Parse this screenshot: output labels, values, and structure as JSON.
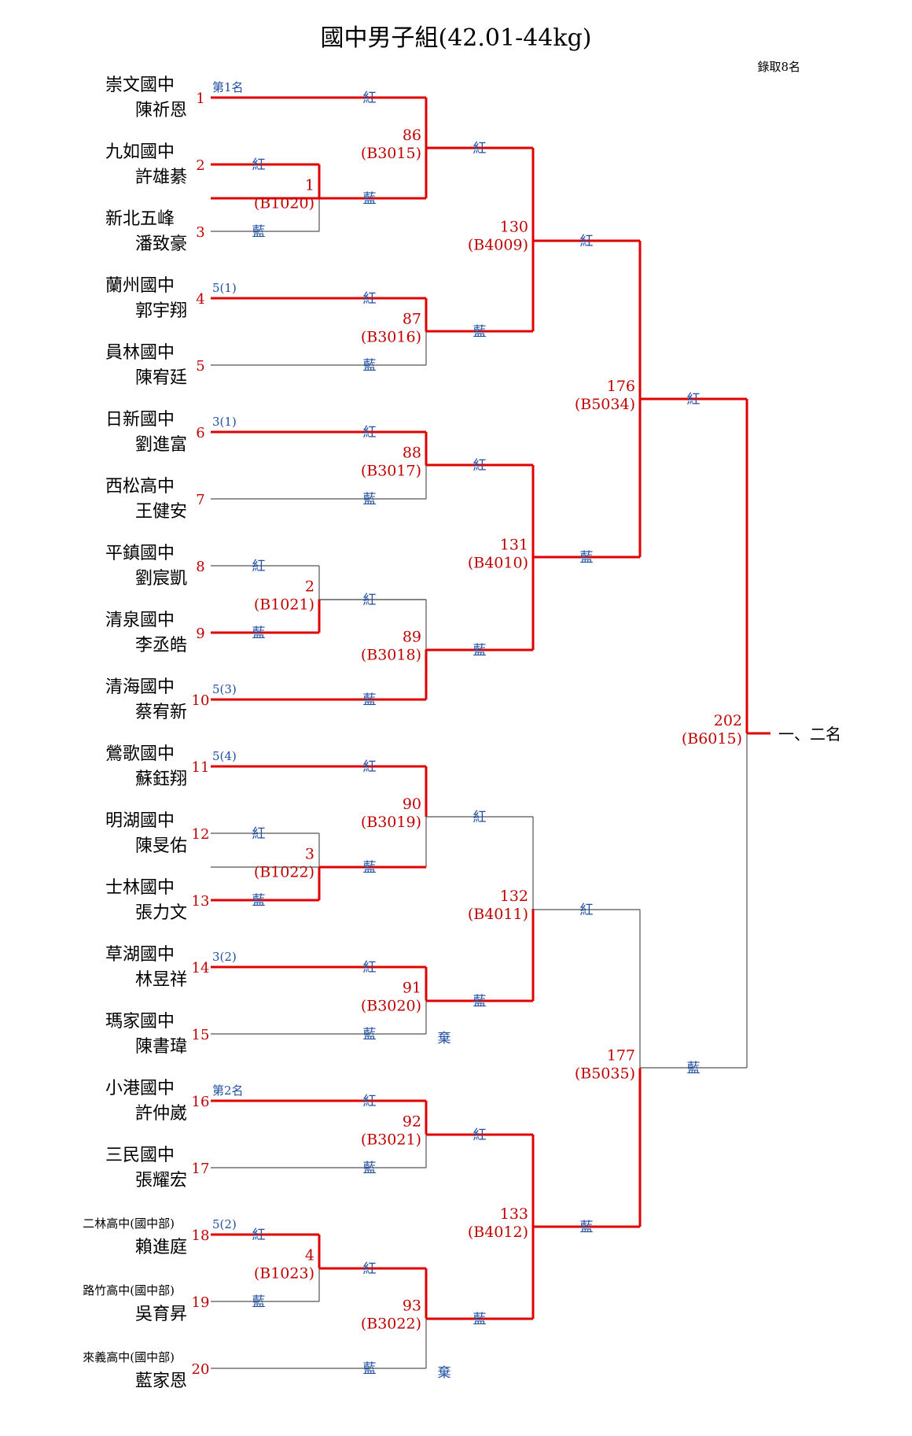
{
  "title": "國中男子組(42.01-44kg)",
  "quota": "錄取8名",
  "final_label": "一、二名",
  "corner_labels": {
    "red": "紅",
    "blue": "藍"
  },
  "forfeit_label": "棄",
  "colors": {
    "win_line": "#e00000",
    "lose_line": "#555555",
    "seed_number": "#c00000",
    "corner_text": "#1f4fa0"
  },
  "competitors": [
    {
      "seed": "1",
      "school": "崇文國中",
      "name": "陳祈恩",
      "note": "第1名"
    },
    {
      "seed": "2",
      "school": "九如國中",
      "name": "許雄綦",
      "note": ""
    },
    {
      "seed": "3",
      "school": "新北五峰",
      "name": "潘致豪",
      "note": ""
    },
    {
      "seed": "4",
      "school": "蘭州國中",
      "name": "郭宇翔",
      "note": "5(1)"
    },
    {
      "seed": "5",
      "school": "員林國中",
      "name": "陳宥廷",
      "note": ""
    },
    {
      "seed": "6",
      "school": "日新國中",
      "name": "劉進富",
      "note": "3(1)"
    },
    {
      "seed": "7",
      "school": "西松高中",
      "name": "王健安",
      "note": ""
    },
    {
      "seed": "8",
      "school": "平鎮國中",
      "name": "劉宸凱",
      "note": ""
    },
    {
      "seed": "9",
      "school": "清泉國中",
      "name": "李丞皓",
      "note": ""
    },
    {
      "seed": "10",
      "school": "清海國中",
      "name": "蔡宥新",
      "note": "5(3)"
    },
    {
      "seed": "11",
      "school": "鶯歌國中",
      "name": "蘇鈺翔",
      "note": "5(4)"
    },
    {
      "seed": "12",
      "school": "明湖國中",
      "name": "陳旻佑",
      "note": ""
    },
    {
      "seed": "13",
      "school": "士林國中",
      "name": "張力文",
      "note": ""
    },
    {
      "seed": "14",
      "school": "草湖國中",
      "name": "林昱祥",
      "note": "3(2)"
    },
    {
      "seed": "15",
      "school": "瑪家國中",
      "name": "陳書瑋",
      "note": ""
    },
    {
      "seed": "16",
      "school": "小港國中",
      "name": "許仲崴",
      "note": "第2名"
    },
    {
      "seed": "17",
      "school": "三民國中",
      "name": "張耀宏",
      "note": ""
    },
    {
      "seed": "18",
      "school": "二林高中(國中部)",
      "name": "賴進庭",
      "note": "5(2)"
    },
    {
      "seed": "19",
      "school": "路竹高中(國中部)",
      "name": "吳育昇",
      "note": ""
    },
    {
      "seed": "20",
      "school": "來義高中(國中部)",
      "name": "藍家恩",
      "note": ""
    }
  ],
  "matches": [
    {
      "id": "m1",
      "number": "1",
      "code": "(B1020)"
    },
    {
      "id": "m2",
      "number": "2",
      "code": "(B1021)"
    },
    {
      "id": "m3",
      "number": "3",
      "code": "(B1022)"
    },
    {
      "id": "m4",
      "number": "4",
      "code": "(B1023)"
    },
    {
      "id": "m86",
      "number": "86",
      "code": "(B3015)"
    },
    {
      "id": "m87",
      "number": "87",
      "code": "(B3016)"
    },
    {
      "id": "m88",
      "number": "88",
      "code": "(B3017)"
    },
    {
      "id": "m89",
      "number": "89",
      "code": "(B3018)"
    },
    {
      "id": "m90",
      "number": "90",
      "code": "(B3019)"
    },
    {
      "id": "m91",
      "number": "91",
      "code": "(B3020)"
    },
    {
      "id": "m92",
      "number": "92",
      "code": "(B3021)"
    },
    {
      "id": "m93",
      "number": "93",
      "code": "(B3022)"
    },
    {
      "id": "m130",
      "number": "130",
      "code": "(B4009)"
    },
    {
      "id": "m131",
      "number": "131",
      "code": "(B4010)"
    },
    {
      "id": "m132",
      "number": "132",
      "code": "(B4011)"
    },
    {
      "id": "m133",
      "number": "133",
      "code": "(B4012)"
    },
    {
      "id": "m176",
      "number": "176",
      "code": "(B5034)"
    },
    {
      "id": "m177",
      "number": "177",
      "code": "(B5035)"
    },
    {
      "id": "m202",
      "number": "202",
      "code": "(B6015)"
    }
  ]
}
